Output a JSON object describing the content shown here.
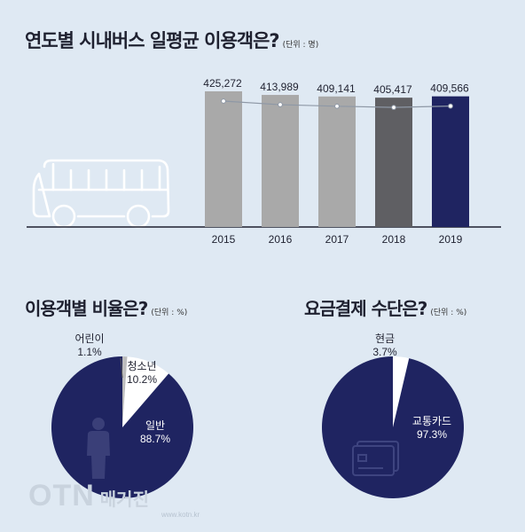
{
  "titles": {
    "main": "연도별 시내버스 일평균 이용객은?",
    "main_unit": "(단위 : 명)",
    "share": "이용객별 비율은?",
    "share_unit": "(단위 : %)",
    "payment": "요금결제 수단은?",
    "payment_unit": "(단위 : %)"
  },
  "chart_data": [
    {
      "type": "bar",
      "title": "연도별 시내버스 일평균 이용객은?",
      "unit": "(단위 : 명)",
      "categories": [
        "2015",
        "2016",
        "2017",
        "2018",
        "2019"
      ],
      "values": [
        425272,
        413989,
        409141,
        405417,
        409566
      ],
      "value_labels": [
        "425,272",
        "413,989",
        "409,141",
        "405,417",
        "409,566"
      ],
      "bar_colors": [
        "#a9a9a9",
        "#a9a9a9",
        "#a9a9a9",
        "#5f5f63",
        "#1f2461"
      ],
      "ylim": [
        0,
        425272
      ],
      "trend_line": true
    },
    {
      "type": "pie",
      "title": "이용객별 비율은?",
      "unit": "(단위 : %)",
      "slices": [
        {
          "label": "어린이",
          "value": 1.1,
          "value_label": "1.1%",
          "color": "#bdbdbd"
        },
        {
          "label": "청소년",
          "value": 10.2,
          "value_label": "10.2%",
          "color": "#ffffff"
        },
        {
          "label": "일반",
          "value": 88.7,
          "value_label": "88.7%",
          "color": "#1f2461"
        }
      ]
    },
    {
      "type": "pie",
      "title": "요금결제 수단은?",
      "unit": "(단위 : %)",
      "slices": [
        {
          "label": "현금",
          "value": 3.7,
          "value_label": "3.7%",
          "color": "#ffffff"
        },
        {
          "label": "교통카드",
          "value": 97.3,
          "value_label": "97.3%",
          "color": "#1f2461"
        }
      ]
    }
  ],
  "watermark": {
    "logo": "OTN",
    "kor": "매거진",
    "url": "www.kotn.kr"
  },
  "colors": {
    "background": "#dfe9f3",
    "navy": "#1f2461",
    "gray": "#a9a9a9",
    "dark_gray": "#5f5f63"
  }
}
